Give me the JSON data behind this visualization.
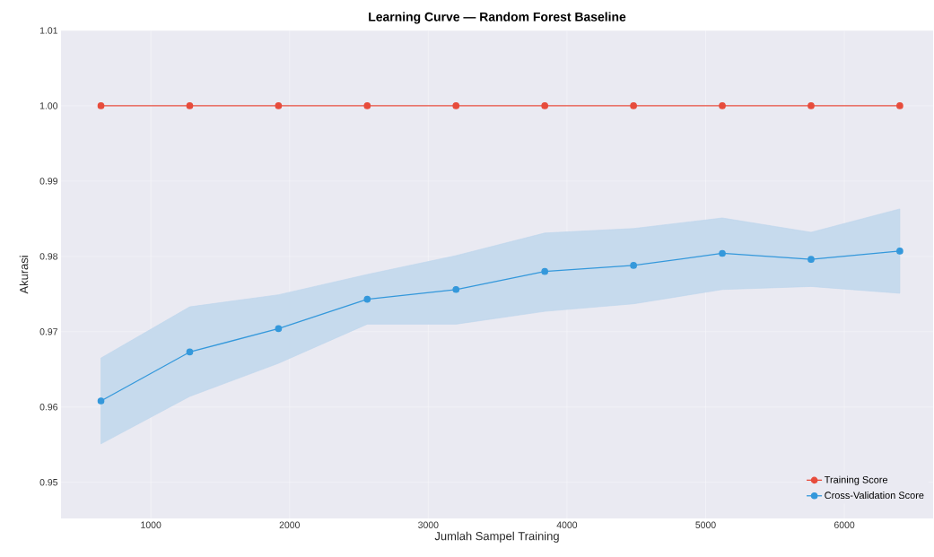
{
  "chart_data": {
    "type": "line",
    "title": "Learning Curve — Random Forest Baseline",
    "xlabel": "Jumlah Sampel Training",
    "ylabel": "Akurasi",
    "x": [
      640,
      1280,
      1920,
      2560,
      3200,
      3840,
      4480,
      5120,
      5760,
      6400
    ],
    "series": [
      {
        "name": "Training Score",
        "color": "#e74c3c",
        "values": [
          1.0,
          1.0,
          1.0,
          1.0,
          1.0,
          1.0,
          1.0,
          1.0,
          1.0,
          1.0
        ]
      },
      {
        "name": "Cross-Validation Score",
        "color": "#3498db",
        "values": [
          0.9608,
          0.9673,
          0.9704,
          0.9743,
          0.9756,
          0.978,
          0.9788,
          0.9804,
          0.9796,
          0.9807
        ],
        "lower": [
          0.9551,
          0.9614,
          0.9658,
          0.971,
          0.971,
          0.9727,
          0.9737,
          0.9756,
          0.976,
          0.9751
        ],
        "upper": [
          0.9665,
          0.9733,
          0.9749,
          0.9776,
          0.9801,
          0.9831,
          0.9837,
          0.9851,
          0.9832,
          0.9863
        ]
      }
    ],
    "xlim": [
      352,
      6640
    ],
    "ylim": [
      0.9452,
      1.01
    ],
    "xticks": [
      1000,
      2000,
      3000,
      4000,
      5000,
      6000
    ],
    "yticks": [
      {
        "value": 0.95,
        "label": "0.95"
      },
      {
        "value": 0.96,
        "label": "0.96"
      },
      {
        "value": 0.97,
        "label": "0.97"
      },
      {
        "value": 0.98,
        "label": "0.98"
      },
      {
        "value": 0.99,
        "label": "0.99"
      },
      {
        "value": 1.0,
        "label": "1.00"
      },
      {
        "value": 1.01,
        "label": "1.01"
      }
    ],
    "grid": true,
    "legend": "bottom right",
    "marker": "circle",
    "line_style": "solid"
  }
}
